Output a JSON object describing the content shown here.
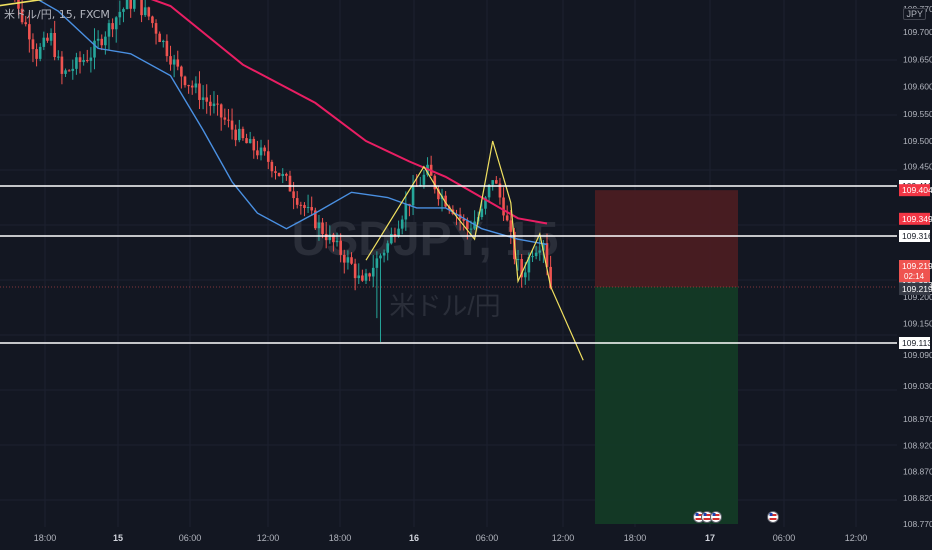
{
  "symbol": "米ドル/円, 15, FXCM",
  "watermark_main": "USDJPY, 15",
  "watermark_sub": "米ドル/円",
  "currency": "JPY",
  "colors": {
    "background": "#131722",
    "bull": "#26a69a",
    "bear": "#ef5350",
    "ema_fast": "#4a90e2",
    "ema_slow": "#e91e63",
    "zigzag": "#f0e060",
    "hline": "#ffffff",
    "stop_zone": "#4a1c22",
    "target_zone": "#133a26"
  },
  "chart_data": {
    "type": "candlestick",
    "ylim": [
      109.77,
      109.8
    ],
    "price_ticks": [
      "109.700",
      "109.650",
      "109.600",
      "109.550",
      "109.500",
      "109.450",
      "109.200",
      "109.150",
      "109.090",
      "109.030",
      "108.970",
      "108.920",
      "108.870",
      "108.820",
      "108.770"
    ],
    "top_tick": "109.770",
    "time_ticks": [
      "18:00",
      "15",
      "06:00",
      "12:00",
      "18:00",
      "16",
      "06:00",
      "12:00",
      "18:00",
      "17",
      "06:00",
      "12:00"
    ],
    "horizontal_levels": [
      {
        "price": 109.412,
        "label": "109.412"
      },
      {
        "price": 109.316,
        "label": "109.316"
      },
      {
        "price": 109.113,
        "label": "109.113"
      }
    ],
    "price_badges": [
      {
        "price": 109.404,
        "label": "109.404",
        "color": "#f23645"
      },
      {
        "price": 109.349,
        "label": "109.349",
        "color": "#f23645"
      },
      {
        "price": 109.223,
        "label": "109.223",
        "color": "#5d606b"
      },
      {
        "price": 109.219,
        "label": "109.219",
        "sub": "02:14",
        "color": "#ef5350"
      },
      {
        "price": 109.219,
        "label": "109.219",
        "color": "#363a45"
      }
    ],
    "position": {
      "entry": 109.219,
      "stop": 109.404,
      "target": 108.77
    },
    "ema_fast": [
      [
        0,
        109.9
      ],
      [
        15,
        109.74
      ],
      [
        26,
        109.67
      ],
      [
        35,
        109.66
      ],
      [
        46,
        109.62
      ],
      [
        55,
        109.52
      ],
      [
        63,
        109.42
      ],
      [
        70,
        109.36
      ],
      [
        78,
        109.33
      ],
      [
        86,
        109.36
      ],
      [
        96,
        109.4
      ],
      [
        106,
        109.39
      ],
      [
        114,
        109.37
      ],
      [
        122,
        109.37
      ],
      [
        132,
        109.33
      ],
      [
        142,
        109.31
      ],
      [
        150,
        109.3
      ]
    ],
    "ema_slow": [
      [
        26,
        109.89
      ],
      [
        46,
        109.75
      ],
      [
        66,
        109.64
      ],
      [
        86,
        109.57
      ],
      [
        100,
        109.5
      ],
      [
        112,
        109.46
      ],
      [
        122,
        109.43
      ],
      [
        132,
        109.39
      ],
      [
        142,
        109.35
      ],
      [
        150,
        109.34
      ]
    ],
    "zigzag": [
      [
        100,
        109.27
      ],
      [
        116,
        109.45
      ],
      [
        122,
        109.38
      ],
      [
        130,
        109.31
      ],
      [
        135,
        109.5
      ],
      [
        140,
        109.38
      ],
      [
        142,
        109.23
      ],
      [
        148,
        109.32
      ],
      [
        151,
        109.22
      ],
      [
        160,
        109.08
      ]
    ],
    "trend_lines": [
      {
        "name": "yellow-upper-trendline",
        "color": "#f0e060",
        "points": [
          [
            -2,
            109.75
          ],
          [
            48,
            109.8
          ]
        ]
      },
      {
        "name": "orange-upper-trendline",
        "color": "#ff9800",
        "points": [
          [
            139,
            109.8
          ],
          [
            150,
            109.79
          ]
        ]
      }
    ],
    "event_markers": 4
  }
}
